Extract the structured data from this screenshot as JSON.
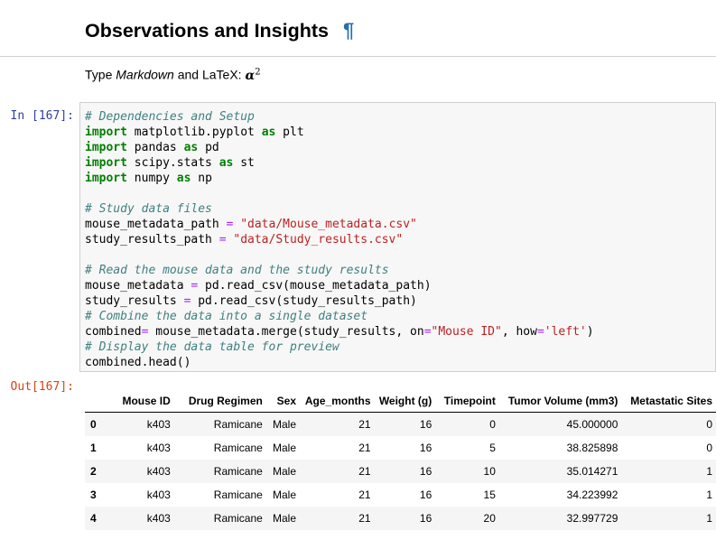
{
  "heading": {
    "text": "Observations and Insights",
    "anchor": "¶"
  },
  "markdown_cell": {
    "prefix": "Type ",
    "em": "Markdown",
    "middle": " and LaTeX: ",
    "math_base": "α",
    "math_sup": "2"
  },
  "input_prompt": "In [167]:",
  "output_prompt": "Out[167]:",
  "code_lines": [
    [
      {
        "t": "c",
        "v": "# Dependencies and Setup"
      }
    ],
    [
      {
        "t": "k",
        "v": "import"
      },
      {
        "t": "n",
        "v": " matplotlib.pyplot "
      },
      {
        "t": "k",
        "v": "as"
      },
      {
        "t": "n",
        "v": " plt"
      }
    ],
    [
      {
        "t": "k",
        "v": "import"
      },
      {
        "t": "n",
        "v": " pandas "
      },
      {
        "t": "k",
        "v": "as"
      },
      {
        "t": "n",
        "v": " pd"
      }
    ],
    [
      {
        "t": "k",
        "v": "import"
      },
      {
        "t": "n",
        "v": " scipy.stats "
      },
      {
        "t": "k",
        "v": "as"
      },
      {
        "t": "n",
        "v": " st"
      }
    ],
    [
      {
        "t": "k",
        "v": "import"
      },
      {
        "t": "n",
        "v": " numpy "
      },
      {
        "t": "k",
        "v": "as"
      },
      {
        "t": "n",
        "v": " np"
      }
    ],
    [],
    [
      {
        "t": "c",
        "v": "# Study data files"
      }
    ],
    [
      {
        "t": "n",
        "v": "mouse_metadata_path "
      },
      {
        "t": "o",
        "v": "="
      },
      {
        "t": "n",
        "v": " "
      },
      {
        "t": "s",
        "v": "\"data/Mouse_metadata.csv\""
      }
    ],
    [
      {
        "t": "n",
        "v": "study_results_path "
      },
      {
        "t": "o",
        "v": "="
      },
      {
        "t": "n",
        "v": " "
      },
      {
        "t": "s",
        "v": "\"data/Study_results.csv\""
      }
    ],
    [],
    [
      {
        "t": "c",
        "v": "# Read the mouse data and the study results"
      }
    ],
    [
      {
        "t": "n",
        "v": "mouse_metadata "
      },
      {
        "t": "o",
        "v": "="
      },
      {
        "t": "n",
        "v": " pd.read_csv(mouse_metadata_path)"
      }
    ],
    [
      {
        "t": "n",
        "v": "study_results "
      },
      {
        "t": "o",
        "v": "="
      },
      {
        "t": "n",
        "v": " pd.read_csv(study_results_path)"
      }
    ],
    [
      {
        "t": "c",
        "v": "# Combine the data into a single dataset"
      }
    ],
    [
      {
        "t": "n",
        "v": "combined"
      },
      {
        "t": "o",
        "v": "="
      },
      {
        "t": "n",
        "v": " mouse_metadata.merge(study_results, on"
      },
      {
        "t": "o",
        "v": "="
      },
      {
        "t": "s",
        "v": "\"Mouse ID\""
      },
      {
        "t": "n",
        "v": ", how"
      },
      {
        "t": "o",
        "v": "="
      },
      {
        "t": "s",
        "v": "'left'"
      },
      {
        "t": "n",
        "v": ")"
      }
    ],
    [
      {
        "t": "c",
        "v": "# Display the data table for preview"
      }
    ],
    [
      {
        "t": "n",
        "v": "combined.head()"
      }
    ]
  ],
  "table": {
    "columns": [
      "",
      "Mouse ID",
      "Drug Regimen",
      "Sex",
      "Age_months",
      "Weight (g)",
      "Timepoint",
      "Tumor Volume (mm3)",
      "Metastatic Sites"
    ],
    "rows": [
      [
        "0",
        "k403",
        "Ramicane",
        "Male",
        "21",
        "16",
        "0",
        "45.000000",
        "0"
      ],
      [
        "1",
        "k403",
        "Ramicane",
        "Male",
        "21",
        "16",
        "5",
        "38.825898",
        "0"
      ],
      [
        "2",
        "k403",
        "Ramicane",
        "Male",
        "21",
        "16",
        "10",
        "35.014271",
        "1"
      ],
      [
        "3",
        "k403",
        "Ramicane",
        "Male",
        "21",
        "16",
        "15",
        "34.223992",
        "1"
      ],
      [
        "4",
        "k403",
        "Ramicane",
        "Male",
        "21",
        "16",
        "20",
        "32.997729",
        "1"
      ]
    ]
  },
  "colors": {
    "input_prompt": "#303f9f",
    "output_prompt": "#d84315",
    "anchor": "#296eaa",
    "comment": "#408080",
    "keyword": "#008000",
    "string": "#ba2121",
    "operator": "#aa22ff"
  }
}
